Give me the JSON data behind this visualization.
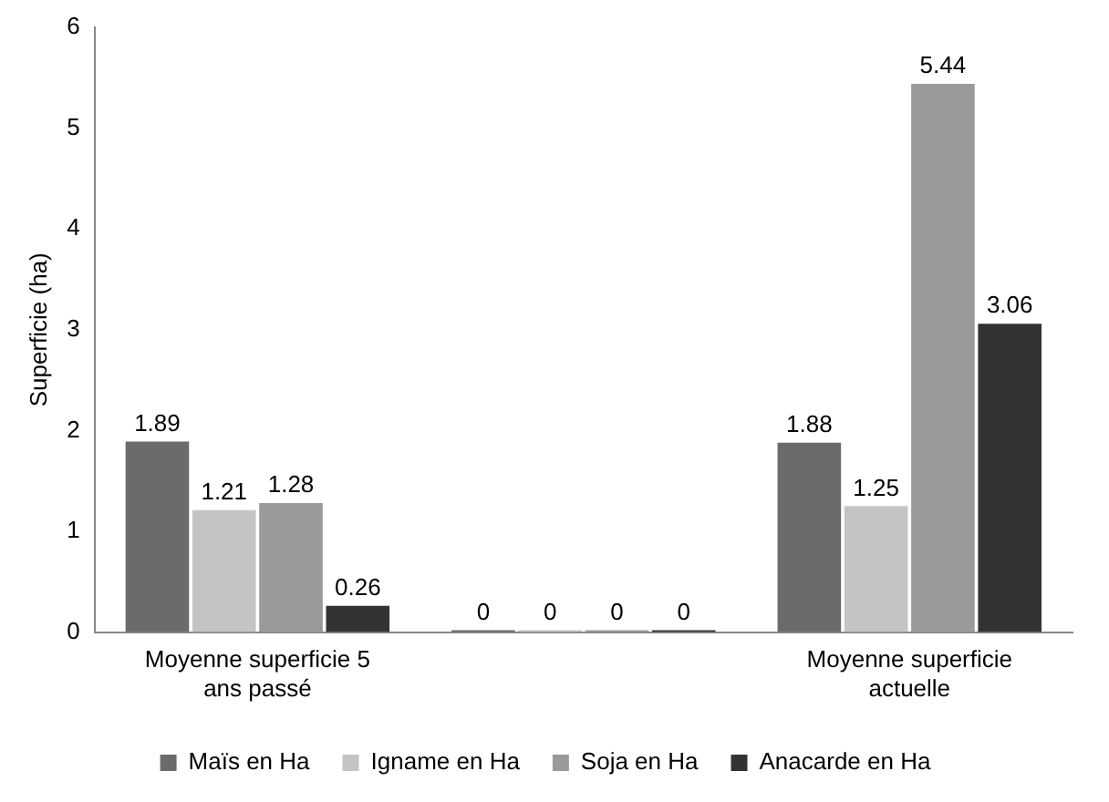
{
  "chart_data": {
    "type": "bar",
    "ylabel": "Superficie (ha)",
    "categories": [
      "Moyenne superficie 5 ans passé",
      null,
      "Moyenne superficie actuelle"
    ],
    "series": [
      {
        "name": "Maïs en Ha",
        "color": "#6b6b6b",
        "values": [
          1.89,
          0,
          1.88
        ]
      },
      {
        "name": "Igname en Ha",
        "color": "#c4c4c4",
        "values": [
          1.21,
          0,
          1.25
        ]
      },
      {
        "name": "Soja en Ha",
        "color": "#9a9a9a",
        "values": [
          1.28,
          0,
          5.44
        ]
      },
      {
        "name": "Anacarde en Ha",
        "color": "#333333",
        "values": [
          0.26,
          0,
          3.06
        ]
      }
    ],
    "ylim": [
      0,
      6
    ],
    "yticks": [
      0,
      1,
      2,
      3,
      4,
      5,
      6
    ],
    "grid": false,
    "legend": "bottom",
    "data_labels": true
  }
}
